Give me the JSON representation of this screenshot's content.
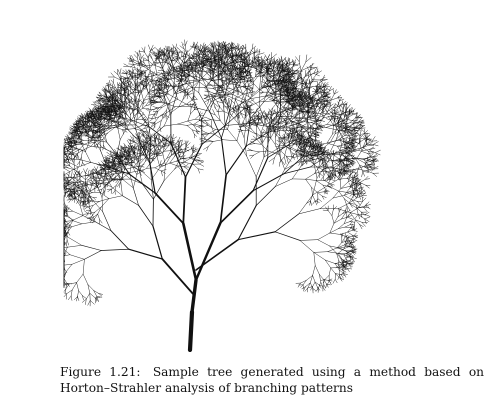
{
  "figure": {
    "image": {
      "description_icon": "fractal-tree-icon",
      "stroke_color": "#111111",
      "background_color": "#ffffff"
    },
    "caption": {
      "label": "Figure 1.21:",
      "text": "Sample tree generated using a method based on Horton–Strahler analysis of branching patterns"
    }
  }
}
